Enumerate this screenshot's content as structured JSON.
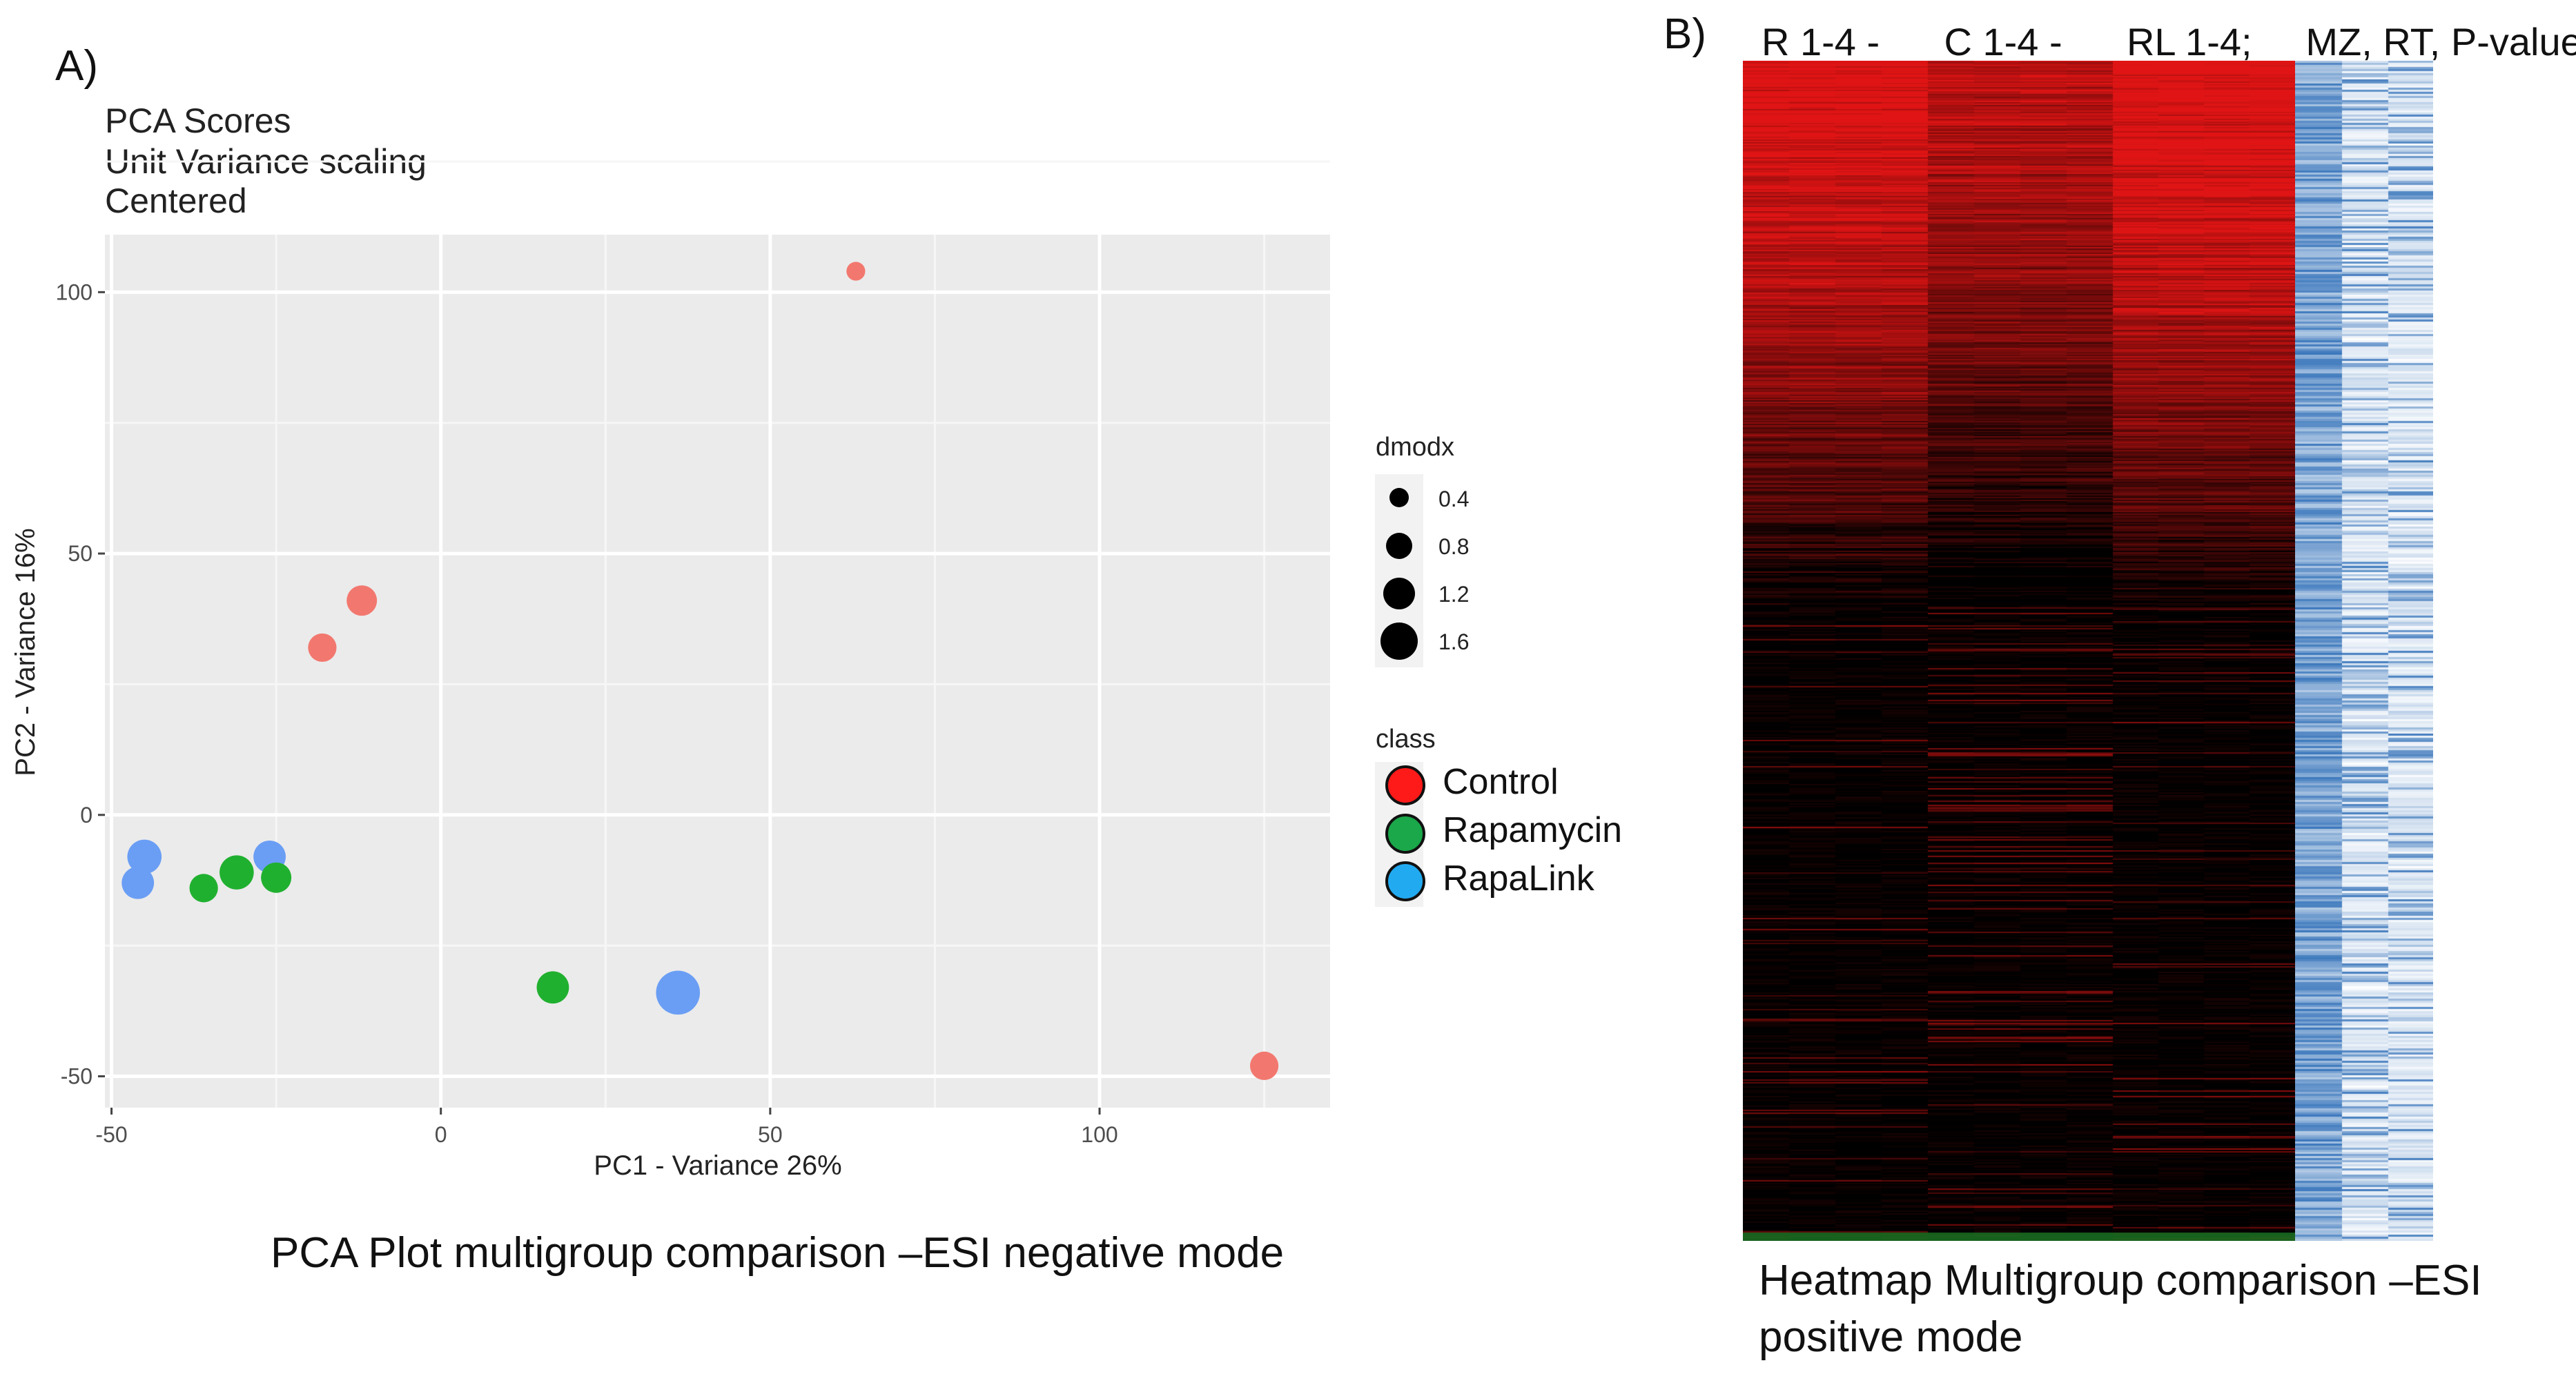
{
  "panel_a": {
    "label": "A)",
    "subtitle_lines": [
      "PCA Scores",
      "Unit Variance scaling",
      "Centered"
    ],
    "caption": "PCA Plot multigroup comparison –ESI negative mode"
  },
  "panel_b": {
    "label": "B)",
    "column_header": "R 1-4 -      C 1-4 -      RL 1-4;     MZ, RT, P-value",
    "caption_lines": [
      "Heatmap Multigroup comparison –ESI",
      "positive mode"
    ]
  },
  "chart_data": [
    {
      "type": "scatter",
      "title": "PCA Scores",
      "xlabel": "PC1 - Variance 26%",
      "ylabel": "PC2 - Variance 16%",
      "xlim": [
        -51,
        135
      ],
      "ylim": [
        -56,
        111
      ],
      "xticks": [
        -50,
        0,
        50,
        100
      ],
      "yticks": [
        -50,
        0,
        50,
        100
      ],
      "grid": true,
      "legend_position": "right",
      "size_legend": {
        "title": "dmodx",
        "entries": [
          {
            "label": "0.4",
            "value": 0.4
          },
          {
            "label": "0.8",
            "value": 0.8
          },
          {
            "label": "1.2",
            "value": 1.2
          },
          {
            "label": "1.6",
            "value": 1.6
          }
        ]
      },
      "class_legend": {
        "title": "class",
        "entries": [
          {
            "label": "Control",
            "color": "#ff1a1a"
          },
          {
            "label": "Rapamycin",
            "color": "#1aa84a"
          },
          {
            "label": "RapaLink",
            "color": "#22aaf0"
          }
        ]
      },
      "point_colors": {
        "Control": "#f2786f",
        "Rapamycin": "#20b02f",
        "RapaLink": "#6a9ef5"
      },
      "points": [
        {
          "class": "Control",
          "x": 63,
          "y": 104,
          "dmodx": 0.4
        },
        {
          "class": "Control",
          "x": -12,
          "y": 41,
          "dmodx": 1.0
        },
        {
          "class": "Control",
          "x": -18,
          "y": 32,
          "dmodx": 0.9
        },
        {
          "class": "Control",
          "x": 125,
          "y": -48,
          "dmodx": 0.9
        },
        {
          "class": "RapaLink",
          "x": -45,
          "y": -8,
          "dmodx": 1.2
        },
        {
          "class": "RapaLink",
          "x": -46,
          "y": -13,
          "dmodx": 1.1
        },
        {
          "class": "RapaLink",
          "x": -26,
          "y": -8,
          "dmodx": 1.1
        },
        {
          "class": "RapaLink",
          "x": 36,
          "y": -34,
          "dmodx": 1.7
        },
        {
          "class": "Rapamycin",
          "x": -36,
          "y": -14,
          "dmodx": 0.9
        },
        {
          "class": "Rapamycin",
          "x": -31,
          "y": -11,
          "dmodx": 1.2
        },
        {
          "class": "Rapamycin",
          "x": -25,
          "y": -12,
          "dmodx": 1.0
        },
        {
          "class": "Rapamycin",
          "x": 17,
          "y": -33,
          "dmodx": 1.1
        }
      ]
    },
    {
      "type": "heatmap",
      "title": "Heatmap Multigroup comparison –ESI positive mode",
      "column_groups": [
        {
          "label": "R 1-4",
          "columns": 4
        },
        {
          "label": "C 1-4",
          "columns": 4
        },
        {
          "label": "RL 1-4",
          "columns": 4
        },
        {
          "label": "MZ, RT, P-value",
          "columns": 3
        }
      ],
      "color_scale": {
        "low": "#000000",
        "high": "#e01818",
        "lowest": "#1f8a2a"
      },
      "side_scale": {
        "low": "#ffffff",
        "high": "#2f6fb8"
      }
    }
  ]
}
